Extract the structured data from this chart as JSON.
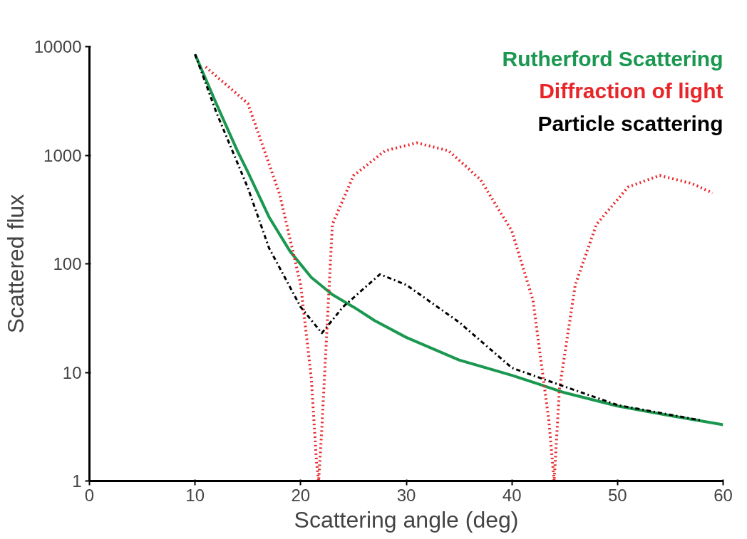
{
  "chart_data": {
    "type": "line",
    "xlabel": "Scattering angle (deg)",
    "ylabel": "Scattered flux",
    "log": "y",
    "xlim": [
      0,
      60
    ],
    "ylim": [
      1,
      10000
    ],
    "xticks": [
      0,
      10,
      20,
      30,
      40,
      50,
      60
    ],
    "yticks": [
      1,
      10,
      100,
      1000,
      10000
    ],
    "grid": false,
    "legend": "top right",
    "marker": "none",
    "series": [
      {
        "name": "Rutherford Scattering",
        "color": "#1a9850",
        "line_style": "solid",
        "x": [
          10,
          12,
          14,
          15,
          17,
          19,
          21,
          23,
          25,
          27,
          30,
          35,
          40,
          45,
          50,
          55,
          60
        ],
        "values": [
          8500,
          3000,
          1100,
          700,
          270,
          130,
          75,
          52,
          40,
          30,
          21,
          13,
          9.4,
          6.5,
          4.9,
          4,
          3.3
        ]
      },
      {
        "name": "Diffraction of light",
        "color": "#e8262a",
        "line_style": "dotted",
        "x": [
          11,
          15,
          18,
          20,
          21,
          21.5,
          21.7,
          22,
          23,
          25,
          28,
          31,
          34,
          37,
          40,
          42,
          43.5,
          44,
          44.5,
          46,
          48,
          51,
          54,
          57,
          59
        ],
        "values": [
          6500,
          3000,
          440,
          64,
          9,
          1.5,
          1,
          3,
          230,
          650,
          1100,
          1300,
          1100,
          600,
          200,
          46,
          3.6,
          1,
          7,
          64,
          230,
          510,
          650,
          550,
          450
        ]
      },
      {
        "name": "Particle scattering",
        "color": "#000000",
        "line_style": "dashdot",
        "x": [
          10,
          12,
          15,
          17,
          20,
          22,
          24,
          27.5,
          30,
          35,
          40,
          44,
          50,
          58
        ],
        "values": [
          8500,
          2500,
          500,
          140,
          40,
          23,
          40,
          80,
          64,
          29,
          11,
          8,
          5,
          3.6
        ]
      }
    ]
  }
}
